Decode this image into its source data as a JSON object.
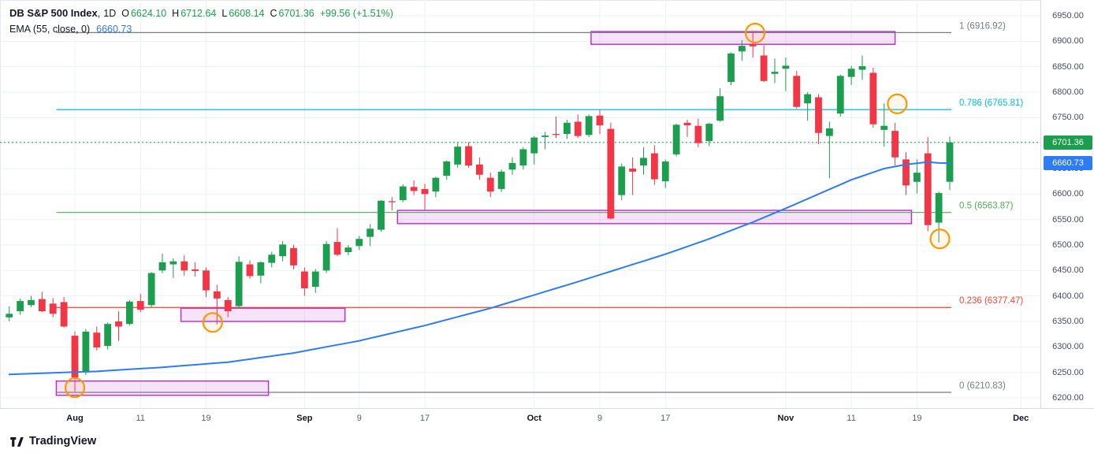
{
  "legend": {
    "title": "DB S&P 500 Index",
    "separator": ",",
    "interval": "1D",
    "o_label": "O",
    "o_value": "6624.10",
    "h_label": "H",
    "h_value": "6712.64",
    "l_label": "L",
    "l_value": "6608.14",
    "c_label": "C",
    "c_value": "6701.36",
    "change": "+99.56 (+1.51%)",
    "ema_name": "EMA (55, close, 0)",
    "ema_value": "6660.73"
  },
  "logo": {
    "text": "TradingView"
  },
  "colors": {
    "up": "#1c9e4f",
    "down": "#f23645",
    "ema": "#2e7bf6",
    "marker": "#ff9800",
    "zone_border": "#bd27cf",
    "zone_fill": "rgba(189,39,207,0.13)",
    "grid": "#eef1f6",
    "axis_text": "#474d5c",
    "frame": "#d7dae2",
    "text_dark": "#131722"
  },
  "price_axis": {
    "values": [
      6950,
      6900,
      6850,
      6800,
      6750,
      6700,
      6650,
      6600,
      6550,
      6500,
      6450,
      6400,
      6350,
      6300,
      6250,
      6200
    ],
    "labels": [
      "6950.00",
      "6900.00",
      "6850.00",
      "6800.00",
      "6750.00",
      "6700.00",
      "6650.00",
      "6600.00",
      "6550.00",
      "6500.00",
      "6450.00",
      "6400.00",
      "6350.00",
      "6300.00",
      "6250.00",
      "6200.00"
    ],
    "last_price": {
      "value": 6701.36,
      "label": "6701.36"
    },
    "ema_value": {
      "value": 6660.73,
      "label": "6660.73"
    }
  },
  "time_axis": {
    "ticks": [
      {
        "label": "Aug",
        "i": 6,
        "major": true
      },
      {
        "label": "11",
        "i": 12,
        "major": false
      },
      {
        "label": "19",
        "i": 18,
        "major": false
      },
      {
        "label": "Sep",
        "i": 27,
        "major": true
      },
      {
        "label": "9",
        "i": 32,
        "major": false
      },
      {
        "label": "17",
        "i": 38,
        "major": false
      },
      {
        "label": "Oct",
        "i": 48,
        "major": true
      },
      {
        "label": "9",
        "i": 54,
        "major": false
      },
      {
        "label": "17",
        "i": 60,
        "major": false
      },
      {
        "label": "Nov",
        "i": 71,
        "major": true
      },
      {
        "label": "11",
        "i": 77,
        "major": false
      },
      {
        "label": "19",
        "i": 83,
        "major": false
      },
      {
        "label": "Dec",
        "i": 92.5,
        "major": true
      }
    ]
  },
  "chart_data": {
    "type": "candlestick",
    "title": "DB S&P 500 Index",
    "interval": "1D",
    "ylim": [
      6200,
      6950
    ],
    "last_close": {
      "value": 6701.36,
      "change": "+99.56",
      "change_pct": "+1.51%"
    },
    "candles": [
      [
        "Jul 24",
        6358,
        6380,
        6350,
        6365
      ],
      [
        "Jul 25",
        6370,
        6395,
        6363,
        6390
      ],
      [
        "Jul 28",
        6382,
        6400,
        6378,
        6392
      ],
      [
        "Jul 29",
        6394,
        6408,
        6368,
        6370
      ],
      [
        "Jul 30",
        6385,
        6396,
        6358,
        6365
      ],
      [
        "Jul 31",
        6388,
        6398,
        6338,
        6340
      ],
      [
        "Aug 1",
        6322,
        6330,
        6213,
        6240
      ],
      [
        "Aug 4",
        6250,
        6335,
        6245,
        6330
      ],
      [
        "Aug 5",
        6328,
        6340,
        6293,
        6299
      ],
      [
        "Aug 6",
        6302,
        6348,
        6295,
        6345
      ],
      [
        "Aug 7",
        6350,
        6370,
        6312,
        6340
      ],
      [
        "Aug 8",
        6345,
        6392,
        6342,
        6389
      ],
      [
        "Aug 11",
        6390,
        6404,
        6368,
        6373
      ],
      [
        "Aug 12",
        6382,
        6447,
        6378,
        6445
      ],
      [
        "Aug 13",
        6450,
        6483,
        6445,
        6466
      ],
      [
        "Aug 14",
        6462,
        6474,
        6435,
        6468
      ],
      [
        "Aug 15",
        6468,
        6480,
        6440,
        6450
      ],
      [
        "Aug 18",
        6452,
        6466,
        6438,
        6449
      ],
      [
        "Aug 19",
        6450,
        6456,
        6398,
        6411
      ],
      [
        "Aug 20",
        6409,
        6422,
        6344,
        6395
      ],
      [
        "Aug 21",
        6392,
        6398,
        6358,
        6370
      ],
      [
        "Aug 22",
        6380,
        6478,
        6375,
        6467
      ],
      [
        "Aug 25",
        6462,
        6470,
        6434,
        6439
      ],
      [
        "Aug 26",
        6440,
        6468,
        6425,
        6466
      ],
      [
        "Aug 27",
        6465,
        6487,
        6456,
        6481
      ],
      [
        "Aug 28",
        6478,
        6508,
        6468,
        6501
      ],
      [
        "Aug 29",
        6494,
        6501,
        6452,
        6460
      ],
      [
        "Sep 2",
        6448,
        6456,
        6400,
        6415
      ],
      [
        "Sep 3",
        6418,
        6453,
        6406,
        6448
      ],
      [
        "Sep 4",
        6450,
        6508,
        6445,
        6502
      ],
      [
        "Sep 5",
        6506,
        6533,
        6478,
        6481
      ],
      [
        "Sep 8",
        6486,
        6500,
        6480,
        6495
      ],
      [
        "Sep 9",
        6498,
        6518,
        6490,
        6512
      ],
      [
        "Sep 10",
        6516,
        6541,
        6498,
        6532
      ],
      [
        "Sep 11",
        6530,
        6588,
        6526,
        6587
      ],
      [
        "Sep 12",
        6586,
        6594,
        6568,
        6584
      ],
      [
        "Sep 15",
        6588,
        6619,
        6584,
        6615
      ],
      [
        "Sep 16",
        6614,
        6627,
        6598,
        6606
      ],
      [
        "Sep 17",
        6610,
        6620,
        6568,
        6600
      ],
      [
        "Sep 18",
        6605,
        6634,
        6594,
        6632
      ],
      [
        "Sep 19",
        6636,
        6666,
        6628,
        6664
      ],
      [
        "Sep 22",
        6658,
        6700,
        6652,
        6693
      ],
      [
        "Sep 23",
        6694,
        6702,
        6652,
        6656
      ],
      [
        "Sep 24",
        6658,
        6672,
        6628,
        6638
      ],
      [
        "Sep 25",
        6632,
        6642,
        6594,
        6605
      ],
      [
        "Sep 26",
        6610,
        6648,
        6604,
        6644
      ],
      [
        "Sep 29",
        6648,
        6672,
        6638,
        6661
      ],
      [
        "Sep 30",
        6656,
        6692,
        6648,
        6688
      ],
      [
        "Oct 1",
        6680,
        6714,
        6658,
        6711
      ],
      [
        "Oct 2",
        6712,
        6722,
        6688,
        6715
      ],
      [
        "Oct 3",
        6718,
        6752,
        6710,
        6716
      ],
      [
        "Oct 6",
        6718,
        6746,
        6708,
        6740
      ],
      [
        "Oct 7",
        6742,
        6756,
        6710,
        6714
      ],
      [
        "Oct 8",
        6716,
        6756,
        6712,
        6753
      ],
      [
        "Oct 9",
        6754,
        6765,
        6718,
        6735
      ],
      [
        "Oct 10",
        6728,
        6740,
        6550,
        6552
      ],
      [
        "Oct 13",
        6598,
        6660,
        6588,
        6654
      ],
      [
        "Oct 14",
        6650,
        6672,
        6598,
        6644
      ],
      [
        "Oct 15",
        6656,
        6692,
        6638,
        6671
      ],
      [
        "Oct 16",
        6680,
        6696,
        6618,
        6629
      ],
      [
        "Oct 17",
        6625,
        6668,
        6612,
        6664
      ],
      [
        "Oct 20",
        6678,
        6738,
        6674,
        6736
      ],
      [
        "Oct 21",
        6740,
        6746,
        6712,
        6735
      ],
      [
        "Oct 22",
        6734,
        6748,
        6692,
        6700
      ],
      [
        "Oct 23",
        6704,
        6740,
        6694,
        6738
      ],
      [
        "Oct 24",
        6744,
        6808,
        6742,
        6792
      ],
      [
        "Oct 27",
        6820,
        6878,
        6814,
        6876
      ],
      [
        "Oct 28",
        6880,
        6902,
        6862,
        6891
      ],
      [
        "Oct 29",
        6894,
        6920,
        6868,
        6890
      ],
      [
        "Oct 30",
        6872,
        6892,
        6820,
        6822
      ],
      [
        "Oct 31",
        6836,
        6866,
        6818,
        6840
      ],
      [
        "Nov 3",
        6846,
        6868,
        6802,
        6852
      ],
      [
        "Nov 4",
        6832,
        6842,
        6768,
        6771
      ],
      [
        "Nov 5",
        6778,
        6800,
        6744,
        6796
      ],
      [
        "Nov 6",
        6790,
        6796,
        6698,
        6720
      ],
      [
        "Nov 7",
        6714,
        6742,
        6631,
        6729
      ],
      [
        "Nov 10",
        6758,
        6834,
        6752,
        6832
      ],
      [
        "Nov 11",
        6830,
        6852,
        6814,
        6846
      ],
      [
        "Nov 12",
        6844,
        6872,
        6824,
        6851
      ],
      [
        "Nov 13",
        6838,
        6848,
        6730,
        6737
      ],
      [
        "Nov 14",
        6726,
        6778,
        6693,
        6734
      ],
      [
        "Nov 17",
        6724,
        6740,
        6656,
        6672
      ],
      [
        "Nov 18",
        6668,
        6682,
        6598,
        6617
      ],
      [
        "Nov 19",
        6624,
        6668,
        6601,
        6642
      ],
      [
        "Nov 20",
        6680,
        6712,
        6527,
        6539
      ],
      [
        "Nov 21",
        6544,
        6605,
        6505,
        6602
      ],
      [
        "Nov 24",
        6624.1,
        6712.64,
        6608.14,
        6701.36
      ]
    ],
    "ema": {
      "name": "EMA (55, close, 0)",
      "period": 55,
      "last": 6660.73,
      "anchor_points": [
        [
          0,
          6246
        ],
        [
          8,
          6252
        ],
        [
          14,
          6260
        ],
        [
          20,
          6270
        ],
        [
          26,
          6288
        ],
        [
          32,
          6312
        ],
        [
          38,
          6342
        ],
        [
          44,
          6376
        ],
        [
          48,
          6402
        ],
        [
          52,
          6428
        ],
        [
          56,
          6455
        ],
        [
          60,
          6482
        ],
        [
          64,
          6512
        ],
        [
          68,
          6545
        ],
        [
          71,
          6572
        ],
        [
          74,
          6600
        ],
        [
          77,
          6628
        ],
        [
          80,
          6650
        ],
        [
          82,
          6658
        ],
        [
          84,
          6663
        ],
        [
          85,
          6661
        ],
        [
          86,
          6660.73
        ]
      ]
    },
    "fib_levels": [
      {
        "label": "1 (6916.92)",
        "value": 6916.92,
        "color": "#787b86"
      },
      {
        "label": "0.786 (6765.81)",
        "value": 6765.81,
        "color": "#00bcd4"
      },
      {
        "label": "0.5 (6563.87)",
        "value": 6563.87,
        "color": "#4caf50"
      },
      {
        "label": "0.236 (6377.47)",
        "value": 6377.47,
        "color": "#f44336"
      },
      {
        "label": "0 (6210.83)",
        "value": 6210.83,
        "color": "#787b86"
      }
    ],
    "zones": [
      {
        "from": 4.3,
        "to": 23.7,
        "top": 6233,
        "bottom": 6205
      },
      {
        "from": 15.7,
        "to": 30.7,
        "top": 6376,
        "bottom": 6350
      },
      {
        "from": 35.5,
        "to": 82.5,
        "top": 6568,
        "bottom": 6542
      },
      {
        "from": 53.2,
        "to": 81.0,
        "top": 6919,
        "bottom": 6894
      }
    ],
    "markers": [
      {
        "i": 6,
        "price": 6220
      },
      {
        "i": 18.6,
        "price": 6348
      },
      {
        "i": 68.2,
        "price": 6916
      },
      {
        "i": 81.2,
        "price": 6777
      },
      {
        "i": 85.1,
        "price": 6512
      }
    ]
  }
}
